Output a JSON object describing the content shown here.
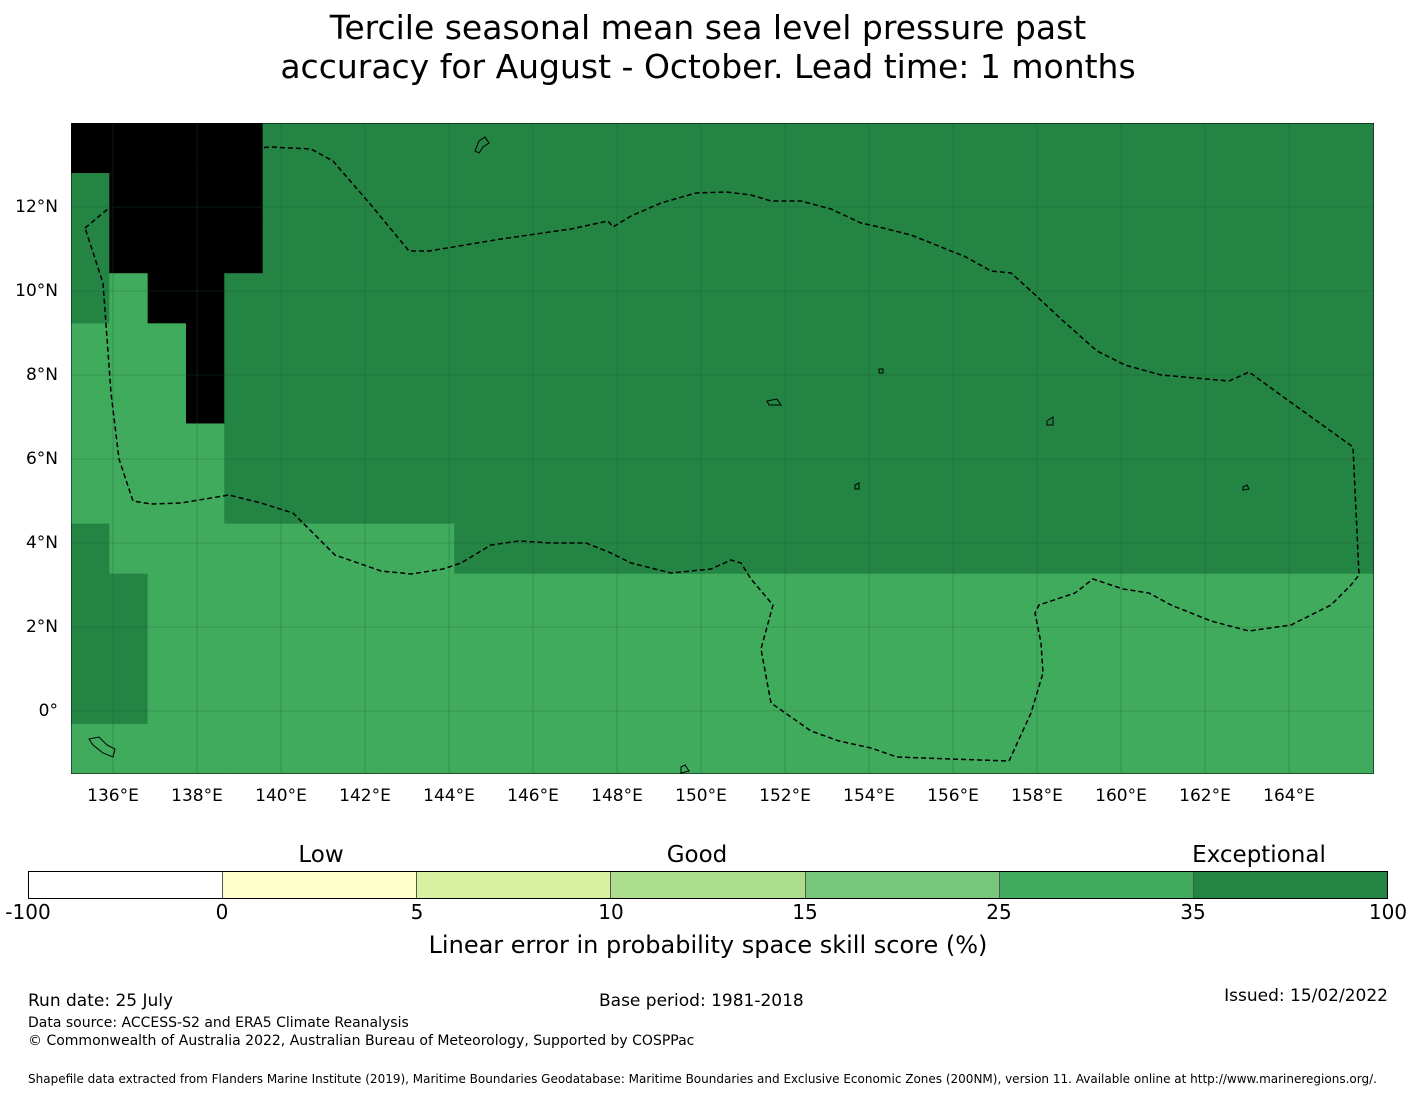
{
  "title": {
    "line1": "Tercile seasonal mean sea level pressure past",
    "line2": "accuracy for August - October. Lead time: 1 months"
  },
  "map": {
    "lon_labels": [
      "136°E",
      "138°E",
      "140°E",
      "142°E",
      "144°E",
      "146°E",
      "148°E",
      "150°E",
      "152°E",
      "154°E",
      "156°E",
      "158°E",
      "160°E",
      "162°E",
      "164°E"
    ],
    "lat_labels": [
      "12°N",
      "10°N",
      "8°N",
      "6°N",
      "4°N",
      "2°N",
      "0°"
    ],
    "extent": {
      "lon": [
        135,
        166
      ],
      "lat": [
        -1.5,
        14
      ]
    },
    "background_class": 6,
    "grid_classes": [
      "7777766666666666666666666666666666",
      "6777766666666666666666666666666666",
      "6777766666666666666666666666666666",
      "6577666666666666666666666666666666",
      "5557666666666666666666666666666666",
      "5557666666666666666666666666666666",
      "5555666666666666666666666666666666",
      "5555666666666666666666666666666666",
      "6555555555666666666666666666666666",
      "6655555555555555555555555555555555",
      "6655555555555555555555555555555555",
      "6655555555555555555555555555555555",
      "5555555555555555555555555555555555"
    ],
    "colors": [
      "#ffffff",
      "#ffffcc",
      "#d9f0a3",
      "#addd8e",
      "#78c679",
      "#41ab5d",
      "#238443"
    ],
    "eez_label": "dashed EEZ boundary"
  },
  "colorbar": {
    "category_labels": [
      {
        "text": "Low",
        "pos": 1.5
      },
      {
        "text": "Good",
        "pos": 3.5
      },
      {
        "text": "Exceptional",
        "pos": 6.35
      }
    ],
    "colors": [
      "#ffffff",
      "#ffffcc",
      "#d9f0a3",
      "#addd8e",
      "#78c679",
      "#41ab5d",
      "#238443"
    ],
    "ticks": [
      "-100",
      "0",
      "5",
      "10",
      "15",
      "25",
      "35",
      "100"
    ],
    "label": "Linear error in probability space skill score (%)"
  },
  "footer": {
    "run_date": "Run date: 25 July",
    "base_period": "Base period: 1981-2018",
    "issued": "Issued: 15/02/2022",
    "data_source": "Data source: ACCESS-S2 and ERA5 Climate Reanalysis",
    "copyright": "© Commonwealth of Australia 2022, Australian Bureau of Meteorology, Supported by COSPPac",
    "shapefile": "Shapefile data extracted from Flanders Marine Institute (2019), Maritime Boundaries Geodatabase: Maritime Boundaries and Exclusive Economic Zones (200NM), version 11. Available online at http://www.marineregions.org/."
  }
}
